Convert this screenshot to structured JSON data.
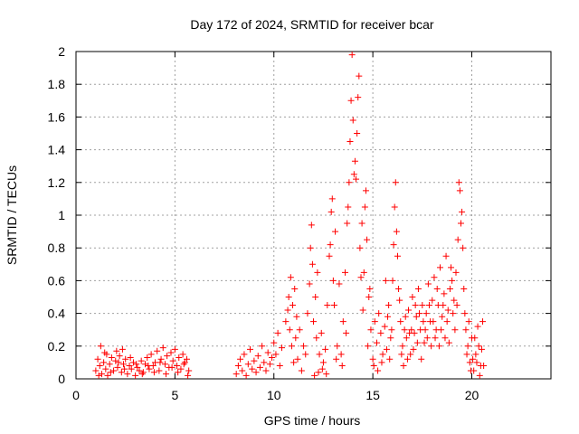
{
  "chart_data": {
    "type": "scatter",
    "title": "Day 172 of 2024, SRMTID for receiver bcar",
    "xlabel": "GPS time / hours",
    "ylabel": "SRMTID / TECUs",
    "xlim": [
      0,
      24
    ],
    "ylim": [
      0,
      2
    ],
    "xticks": [
      0,
      5,
      10,
      15,
      20
    ],
    "xtick_labels": [
      "0",
      "5",
      "10",
      "15",
      "20"
    ],
    "yticks": [
      0,
      0.2,
      0.4,
      0.6,
      0.8,
      1,
      1.2,
      1.4,
      1.6,
      1.8,
      2
    ],
    "ytick_labels": [
      "0",
      "0.2",
      "0.4",
      "0.6",
      "0.8",
      "1",
      "1.2",
      "1.4",
      "1.6",
      "1.8",
      "2"
    ],
    "grid": true,
    "marker": "+",
    "color": "#ff0000",
    "series": [
      {
        "name": "SRMTID",
        "points": [
          [
            1.0,
            0.05
          ],
          [
            1.1,
            0.12
          ],
          [
            1.2,
            0.08
          ],
          [
            1.25,
            0.2
          ],
          [
            1.3,
            0.03
          ],
          [
            1.4,
            0.1
          ],
          [
            1.5,
            0.06
          ],
          [
            1.55,
            0.15
          ],
          [
            1.6,
            0.02
          ],
          [
            1.7,
            0.09
          ],
          [
            1.8,
            0.13
          ],
          [
            1.9,
            0.05
          ],
          [
            2.0,
            0.11
          ],
          [
            2.05,
            0.17
          ],
          [
            2.1,
            0.07
          ],
          [
            2.2,
            0.14
          ],
          [
            2.3,
            0.04
          ],
          [
            2.35,
            0.18
          ],
          [
            2.4,
            0.09
          ],
          [
            2.5,
            0.12
          ],
          [
            2.6,
            0.03
          ],
          [
            2.7,
            0.08
          ],
          [
            2.8,
            0.06
          ],
          [
            2.9,
            0.1
          ],
          [
            3.0,
            0.02
          ],
          [
            3.1,
            0.07
          ],
          [
            3.2,
            0.05
          ],
          [
            3.3,
            0.11
          ],
          [
            3.4,
            0.04
          ],
          [
            3.5,
            0.09
          ],
          [
            3.6,
            0.13
          ],
          [
            3.7,
            0.06
          ],
          [
            3.8,
            0.15
          ],
          [
            3.9,
            0.08
          ],
          [
            4.0,
            0.1
          ],
          [
            4.1,
            0.17
          ],
          [
            4.2,
            0.05
          ],
          [
            4.3,
            0.12
          ],
          [
            4.4,
            0.19
          ],
          [
            4.5,
            0.09
          ],
          [
            4.6,
            0.14
          ],
          [
            4.7,
            0.07
          ],
          [
            4.8,
            0.16
          ],
          [
            4.9,
            0.11
          ],
          [
            5.0,
            0.18
          ],
          [
            5.1,
            0.08
          ],
          [
            5.2,
            0.13
          ],
          [
            5.3,
            0.06
          ],
          [
            5.4,
            0.15
          ],
          [
            5.5,
            0.1
          ],
          [
            5.6,
            0.12
          ],
          [
            5.7,
            0.05
          ],
          [
            1.15,
            0.02
          ],
          [
            1.45,
            0.16
          ],
          [
            1.75,
            0.04
          ],
          [
            2.15,
            0.1
          ],
          [
            2.45,
            0.06
          ],
          [
            2.75,
            0.13
          ],
          [
            3.05,
            0.09
          ],
          [
            3.35,
            0.03
          ],
          [
            3.65,
            0.08
          ],
          [
            3.95,
            0.04
          ],
          [
            4.25,
            0.1
          ],
          [
            4.55,
            0.03
          ],
          [
            4.85,
            0.07
          ],
          [
            5.15,
            0.04
          ],
          [
            5.45,
            0.09
          ],
          [
            5.65,
            0.02
          ],
          [
            8.1,
            0.03
          ],
          [
            8.2,
            0.08
          ],
          [
            8.3,
            0.12
          ],
          [
            8.4,
            0.05
          ],
          [
            8.5,
            0.15
          ],
          [
            8.6,
            0.02
          ],
          [
            8.7,
            0.09
          ],
          [
            8.8,
            0.18
          ],
          [
            8.9,
            0.06
          ],
          [
            9.0,
            0.11
          ],
          [
            9.1,
            0.04
          ],
          [
            9.2,
            0.14
          ],
          [
            9.3,
            0.07
          ],
          [
            9.4,
            0.2
          ],
          [
            9.5,
            0.1
          ],
          [
            9.6,
            0.05
          ],
          [
            9.7,
            0.16
          ],
          [
            9.8,
            0.09
          ],
          [
            9.9,
            0.13
          ],
          [
            10.0,
            0.22
          ],
          [
            10.1,
            0.15
          ],
          [
            10.2,
            0.28
          ],
          [
            10.3,
            0.08
          ],
          [
            10.4,
            0.19
          ],
          [
            10.6,
            0.35
          ],
          [
            10.7,
            0.42
          ],
          [
            10.75,
            0.5
          ],
          [
            10.8,
            0.3
          ],
          [
            10.85,
            0.62
          ],
          [
            10.9,
            0.2
          ],
          [
            10.95,
            0.45
          ],
          [
            11.0,
            0.1
          ],
          [
            11.05,
            0.55
          ],
          [
            11.1,
            0.25
          ],
          [
            11.15,
            0.38
          ],
          [
            11.2,
            0.12
          ],
          [
            11.3,
            0.3
          ],
          [
            11.4,
            0.05
          ],
          [
            11.5,
            0.2
          ],
          [
            11.6,
            0.15
          ],
          [
            11.7,
            0.4
          ],
          [
            11.8,
            0.58
          ],
          [
            11.85,
            0.8
          ],
          [
            11.9,
            0.94
          ],
          [
            11.95,
            0.7
          ],
          [
            12.0,
            0.35
          ],
          [
            12.1,
            0.5
          ],
          [
            12.15,
            0.25
          ],
          [
            12.2,
            0.65
          ],
          [
            12.3,
            0.15
          ],
          [
            12.4,
            0.28
          ],
          [
            12.5,
            0.1
          ],
          [
            12.6,
            0.18
          ],
          [
            12.7,
            0.45
          ],
          [
            12.8,
            0.75
          ],
          [
            12.85,
            0.82
          ],
          [
            12.9,
            1.02
          ],
          [
            12.95,
            1.1
          ],
          [
            13.0,
            0.6
          ],
          [
            13.05,
            0.45
          ],
          [
            13.1,
            0.9
          ],
          [
            13.2,
            0.2
          ],
          [
            13.3,
            0.58
          ],
          [
            13.4,
            0.15
          ],
          [
            13.5,
            0.35
          ],
          [
            13.6,
            0.65
          ],
          [
            13.7,
            0.95
          ],
          [
            13.75,
            1.05
          ],
          [
            13.8,
            1.2
          ],
          [
            13.85,
            1.45
          ],
          [
            13.9,
            1.7
          ],
          [
            13.95,
            1.98
          ],
          [
            14.0,
            1.58
          ],
          [
            14.05,
            1.25
          ],
          [
            14.1,
            1.33
          ],
          [
            14.15,
            1.22
          ],
          [
            14.2,
            1.5
          ],
          [
            14.25,
            1.72
          ],
          [
            14.3,
            1.85
          ],
          [
            14.35,
            0.8
          ],
          [
            14.4,
            0.62
          ],
          [
            14.45,
            0.95
          ],
          [
            14.5,
            0.42
          ],
          [
            14.6,
            1.05
          ],
          [
            14.65,
            1.15
          ],
          [
            14.7,
            0.85
          ],
          [
            14.75,
            0.2
          ],
          [
            14.8,
            0.5
          ],
          [
            14.9,
            0.3
          ],
          [
            15.0,
            0.12
          ],
          [
            15.1,
            0.35
          ],
          [
            15.2,
            0.22
          ],
          [
            15.3,
            0.4
          ],
          [
            15.4,
            0.28
          ],
          [
            15.5,
            0.15
          ],
          [
            15.6,
            0.32
          ],
          [
            15.7,
            0.18
          ],
          [
            15.8,
            0.45
          ],
          [
            15.9,
            0.25
          ],
          [
            16.0,
            0.6
          ],
          [
            16.05,
            0.82
          ],
          [
            16.1,
            1.05
          ],
          [
            16.15,
            1.2
          ],
          [
            16.2,
            0.9
          ],
          [
            16.25,
            0.75
          ],
          [
            16.3,
            0.55
          ],
          [
            16.4,
            0.35
          ],
          [
            16.5,
            0.2
          ],
          [
            16.6,
            0.3
          ],
          [
            16.7,
            0.25
          ],
          [
            16.8,
            0.42
          ],
          [
            16.9,
            0.15
          ],
          [
            17.0,
            0.5
          ],
          [
            17.1,
            0.28
          ],
          [
            17.2,
            0.38
          ],
          [
            17.3,
            0.55
          ],
          [
            17.4,
            0.3
          ],
          [
            17.5,
            0.45
          ],
          [
            17.6,
            0.22
          ],
          [
            17.7,
            0.4
          ],
          [
            17.8,
            0.58
          ],
          [
            17.9,
            0.35
          ],
          [
            18.0,
            0.48
          ],
          [
            18.1,
            0.62
          ],
          [
            18.2,
            0.3
          ],
          [
            18.3,
            0.45
          ],
          [
            18.4,
            0.68
          ],
          [
            18.5,
            0.38
          ],
          [
            18.6,
            0.52
          ],
          [
            18.7,
            0.75
          ],
          [
            18.8,
            0.42
          ],
          [
            18.9,
            0.55
          ],
          [
            19.0,
            0.6
          ],
          [
            19.1,
            0.48
          ],
          [
            19.2,
            0.65
          ],
          [
            19.3,
            0.85
          ],
          [
            19.35,
            1.2
          ],
          [
            19.4,
            1.15
          ],
          [
            19.45,
            0.95
          ],
          [
            19.5,
            1.02
          ],
          [
            19.55,
            0.8
          ],
          [
            19.6,
            0.55
          ],
          [
            19.7,
            0.3
          ],
          [
            19.8,
            0.2
          ],
          [
            19.9,
            0.1
          ],
          [
            20.0,
            0.25
          ],
          [
            20.1,
            0.05
          ],
          [
            20.2,
            0.15
          ],
          [
            20.3,
            0.32
          ],
          [
            20.4,
            0.02
          ],
          [
            20.5,
            0.18
          ],
          [
            20.55,
            0.35
          ],
          [
            20.6,
            0.08
          ],
          [
            12.05,
            0.02
          ],
          [
            12.25,
            0.04
          ],
          [
            12.45,
            0.06
          ],
          [
            12.65,
            0.03
          ],
          [
            13.15,
            0.12
          ],
          [
            13.45,
            0.08
          ],
          [
            13.65,
            0.28
          ],
          [
            14.55,
            0.65
          ],
          [
            14.85,
            0.55
          ],
          [
            15.05,
            0.08
          ],
          [
            15.25,
            0.05
          ],
          [
            15.45,
            0.1
          ],
          [
            15.65,
            0.6
          ],
          [
            15.75,
            0.38
          ],
          [
            15.85,
            0.12
          ],
          [
            15.95,
            0.3
          ],
          [
            16.35,
            0.48
          ],
          [
            16.45,
            0.15
          ],
          [
            16.55,
            0.08
          ],
          [
            16.65,
            0.38
          ],
          [
            16.75,
            0.12
          ],
          [
            16.85,
            0.28
          ],
          [
            16.95,
            0.3
          ],
          [
            17.05,
            0.18
          ],
          [
            17.15,
            0.45
          ],
          [
            17.25,
            0.22
          ],
          [
            17.35,
            0.4
          ],
          [
            17.45,
            0.12
          ],
          [
            17.55,
            0.35
          ],
          [
            17.65,
            0.3
          ],
          [
            17.75,
            0.25
          ],
          [
            17.85,
            0.45
          ],
          [
            17.95,
            0.2
          ],
          [
            18.05,
            0.35
          ],
          [
            18.15,
            0.25
          ],
          [
            18.25,
            0.55
          ],
          [
            18.35,
            0.2
          ],
          [
            18.45,
            0.3
          ],
          [
            18.55,
            0.45
          ],
          [
            18.65,
            0.25
          ],
          [
            18.75,
            0.35
          ],
          [
            18.85,
            0.22
          ],
          [
            18.95,
            0.68
          ],
          [
            19.05,
            0.4
          ],
          [
            19.15,
            0.3
          ],
          [
            19.25,
            0.45
          ],
          [
            19.65,
            0.4
          ],
          [
            19.75,
            0.15
          ],
          [
            19.85,
            0.35
          ],
          [
            19.95,
            0.05
          ],
          [
            20.05,
            0.12
          ],
          [
            20.15,
            0.25
          ],
          [
            20.25,
            0.1
          ],
          [
            20.35,
            0.2
          ],
          [
            20.45,
            0.08
          ]
        ]
      }
    ]
  }
}
